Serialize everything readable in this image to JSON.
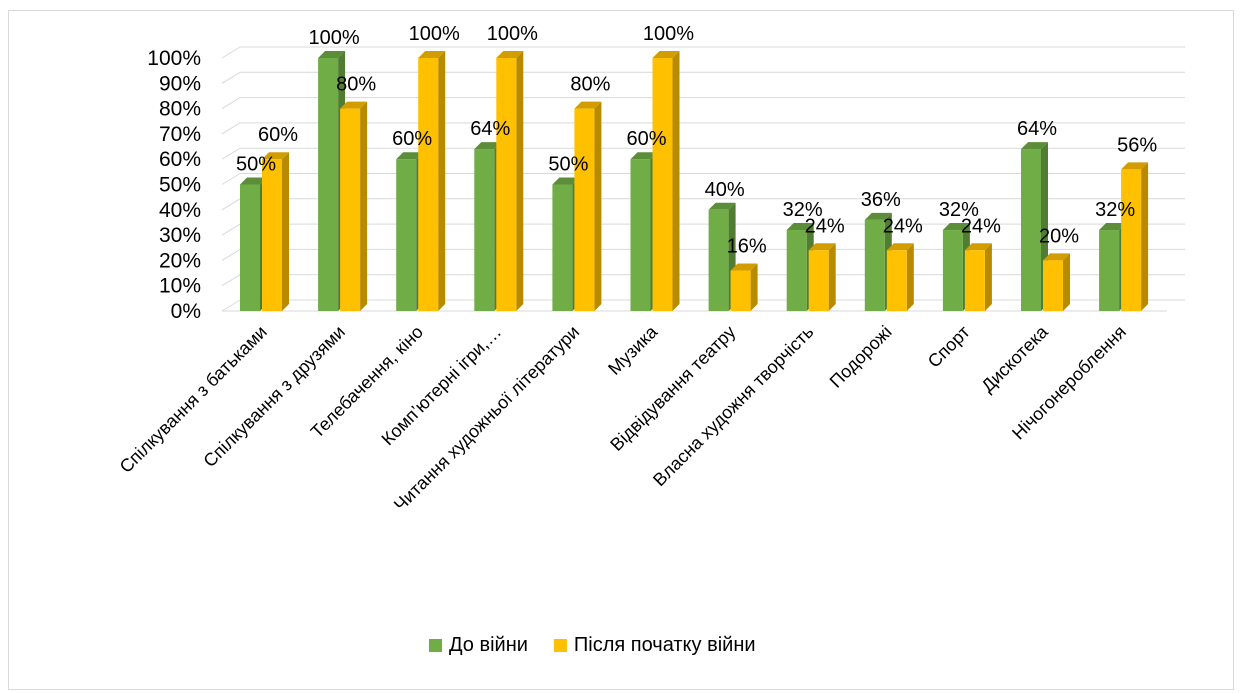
{
  "chart_data": {
    "type": "bar",
    "style": "3d-clustered-column",
    "categories": [
      "Спілкування з батьками",
      "Спілкування з друзями",
      "Телебачення, кіно",
      "Комп’ютерні ігри,…",
      "Читання художньої літератури",
      "Музика",
      "Відвідування театру",
      "Власна художня творчість",
      "Подорожі",
      "Спорт",
      "Дискотека",
      "Нічогонероблення"
    ],
    "series": [
      {
        "name": "До війни",
        "color": "#70ad47",
        "values": [
          50,
          100,
          60,
          64,
          50,
          60,
          40,
          32,
          36,
          32,
          64,
          32
        ]
      },
      {
        "name": "Після початку війни",
        "color": "#ffc000",
        "values": [
          60,
          80,
          100,
          100,
          80,
          100,
          16,
          24,
          24,
          24,
          20,
          56
        ]
      }
    ],
    "value_suffix": "%",
    "yticks": [
      "0%",
      "10%",
      "20%",
      "30%",
      "40%",
      "50%",
      "60%",
      "70%",
      "80%",
      "90%",
      "100%"
    ],
    "ylim": [
      0,
      100
    ],
    "grid": true,
    "legend": "bottom",
    "data_labels": true
  }
}
